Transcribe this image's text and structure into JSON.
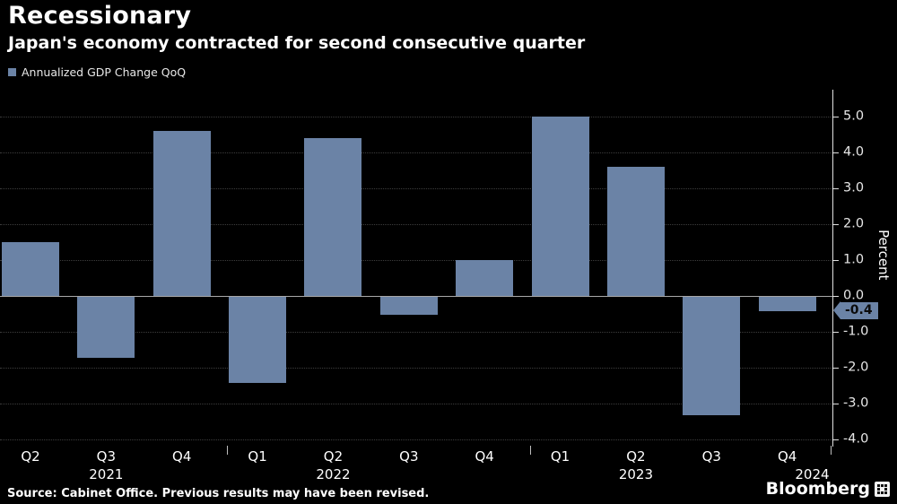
{
  "header": {
    "title": "Recessionary",
    "subtitle": "Japan's economy contracted for second consecutive quarter"
  },
  "legend": {
    "label": "Annualized GDP Change QoQ"
  },
  "chart_data": {
    "type": "bar",
    "title": "Recessionary",
    "subtitle": "Japan's economy contracted for second consecutive quarter",
    "series_name": "Annualized GDP Change QoQ",
    "categories": [
      "Q2",
      "Q3",
      "Q4",
      "Q1",
      "Q2",
      "Q3",
      "Q4",
      "Q1",
      "Q2",
      "Q3",
      "Q4"
    ],
    "values": [
      1.5,
      -1.7,
      4.6,
      -2.4,
      4.4,
      -0.5,
      1.0,
      5.0,
      3.6,
      -3.3,
      -0.4
    ],
    "year_labels": [
      {
        "label": "2021",
        "slot": 1
      },
      {
        "label": "2022",
        "slot": 4
      },
      {
        "label": "2023",
        "slot": 8
      },
      {
        "label": "2024",
        "slot": 10.33
      }
    ],
    "year_boundary_slots": [
      3,
      7,
      11
    ],
    "xlabel": "",
    "ylabel": "Percent",
    "ylim": [
      -4.2,
      5.75
    ],
    "yticks": [
      5.0,
      4.0,
      3.0,
      2.0,
      1.0,
      0.0,
      -1.0,
      -2.0,
      -3.0,
      -4.0
    ],
    "ytick_labels": [
      "5.0",
      "4.0",
      "3.0",
      "2.0",
      "1.0",
      "0.0",
      "-1.0",
      "-2.0",
      "-3.0",
      "-4.0"
    ],
    "grid": "dotted-horizontal",
    "legend_position": "top-left",
    "bar_color": "#6b83a6",
    "background_color": "#000000",
    "last_value_badge": "-0.4"
  },
  "footer": {
    "source": "Source: Cabinet Office. Previous results may have been revised.",
    "logo": "Bloomberg"
  }
}
